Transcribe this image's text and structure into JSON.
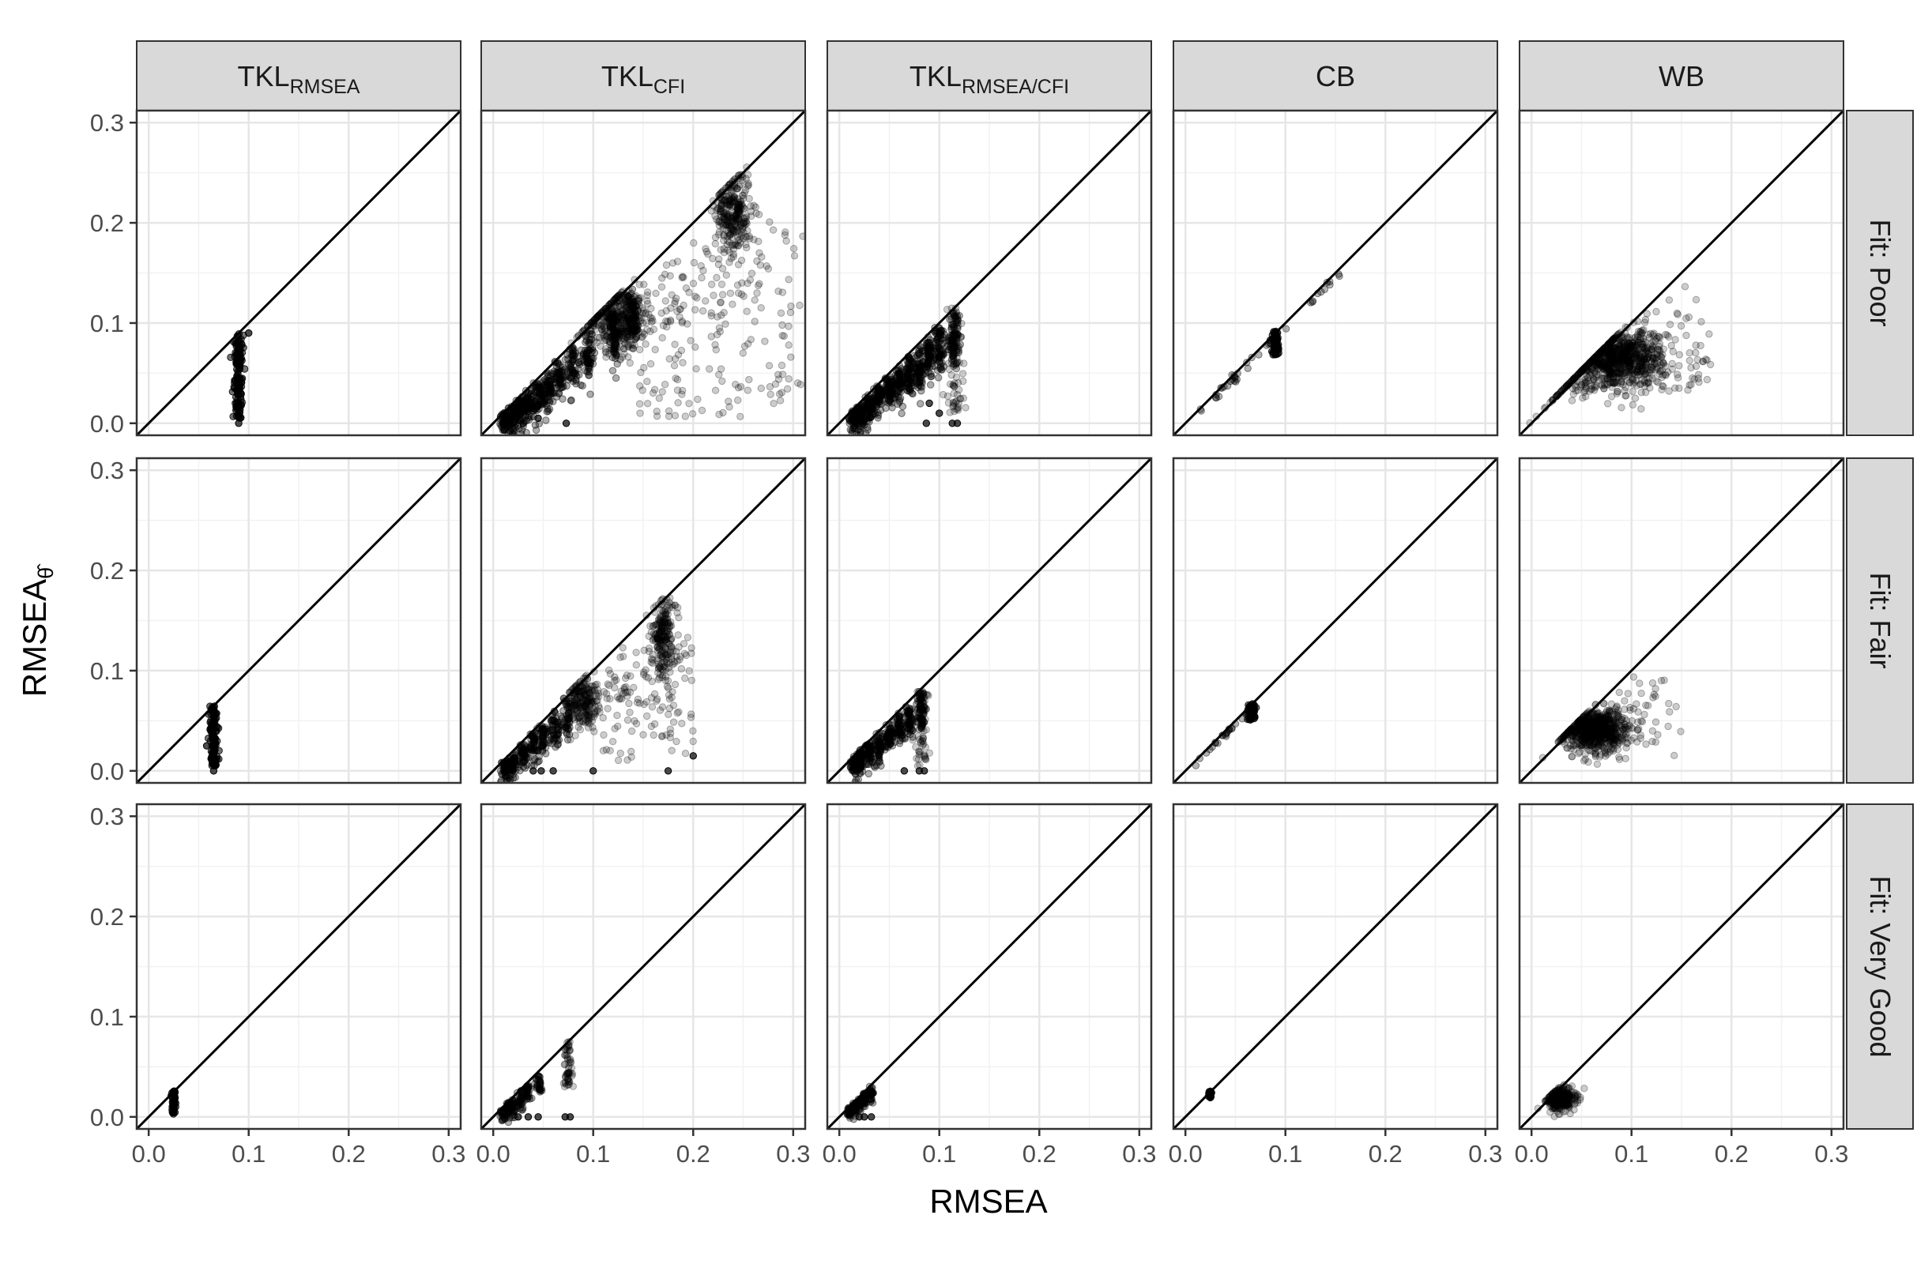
{
  "chart_data": {
    "type": "scatter",
    "facet_layout": "grid",
    "xlabel": "RMSEA",
    "ylabel": {
      "main": "RMSEA",
      "subscript": "θ̂"
    },
    "xlim": [
      -0.012,
      0.312
    ],
    "ylim": [
      -0.012,
      0.312
    ],
    "x_ticks": [
      0.0,
      0.1,
      0.2,
      0.3
    ],
    "y_ticks": [
      0.0,
      0.1,
      0.2,
      0.3
    ],
    "x_tick_labels": [
      "0.0",
      "0.1",
      "0.2",
      "0.3"
    ],
    "y_tick_labels": [
      "0.0",
      "0.1",
      "0.2",
      "0.3"
    ],
    "grid": true,
    "reference_line": "y = x",
    "point_color": "#000000",
    "point_alpha": 0.2,
    "columns": [
      {
        "main": "TKL",
        "sub": "RMSEA"
      },
      {
        "main": "TKL",
        "sub": "CFI"
      },
      {
        "main": "TKL",
        "sub": "RMSEA/CFI"
      },
      {
        "main": "CB",
        "sub": ""
      },
      {
        "main": "WB",
        "sub": ""
      }
    ],
    "rows": [
      {
        "label": "Fit: Poor",
        "true_rmsea": 0.09
      },
      {
        "label": "Fit: Fair",
        "true_rmsea": 0.065
      },
      {
        "label": "Fit: Very Good",
        "true_rmsea": 0.025
      }
    ],
    "panels": [
      {
        "row": 0,
        "col": 0,
        "clusters": [
          {
            "kind": "vertical",
            "x": 0.09,
            "y_range": [
              0.005,
              0.09
            ],
            "n": 140,
            "spread": 0.002,
            "dense": true
          },
          {
            "kind": "points",
            "points": [
              [
                0.09,
                0.0
              ],
              [
                0.1,
                0.09
              ]
            ]
          }
        ]
      },
      {
        "row": 0,
        "col": 1,
        "clusters": [
          {
            "kind": "staircase",
            "xs": [
              0.012,
              0.02,
              0.028,
              0.036,
              0.045,
              0.055,
              0.065,
              0.08,
              0.095,
              0.12,
              0.14
            ],
            "n_each": 60,
            "spread": 0.006
          },
          {
            "kind": "blob",
            "cx": 0.125,
            "cy": 0.105,
            "rx": 0.025,
            "ry": 0.028,
            "n": 420
          },
          {
            "kind": "blob",
            "cx": 0.24,
            "cy": 0.21,
            "rx": 0.015,
            "ry": 0.035,
            "n": 300
          },
          {
            "kind": "scatter",
            "x_range": [
              0.14,
              0.31
            ],
            "y_range": [
              0.005,
              0.21
            ],
            "n": 220,
            "below_diagonal": true
          },
          {
            "kind": "points",
            "points": [
              [
                0.01,
                0.0
              ],
              [
                0.02,
                0.0
              ],
              [
                0.03,
                0.0
              ],
              [
                0.073,
                0.0
              ],
              [
                0.045,
                0.005
              ]
            ]
          }
        ]
      },
      {
        "row": 0,
        "col": 2,
        "clusters": [
          {
            "kind": "staircase",
            "xs": [
              0.015,
              0.022,
              0.03,
              0.04,
              0.05,
              0.06,
              0.07,
              0.08,
              0.09,
              0.1,
              0.115
            ],
            "n_each": 70,
            "spread": 0.005
          },
          {
            "kind": "vertical",
            "x": 0.115,
            "y_range": [
              0.01,
              0.115
            ],
            "n": 90,
            "spread": 0.004,
            "dense": false
          },
          {
            "kind": "points",
            "points": [
              [
                0.087,
                0.0
              ],
              [
                0.113,
                0.0
              ],
              [
                0.118,
                0.0
              ],
              [
                0.1,
                0.01
              ],
              [
                0.09,
                0.02
              ]
            ]
          }
        ]
      },
      {
        "row": 0,
        "col": 3,
        "clusters": [
          {
            "kind": "vertical",
            "x": 0.09,
            "y_range": [
              0.068,
              0.092
            ],
            "n": 60,
            "spread": 0.002,
            "dense": true
          },
          {
            "kind": "line",
            "x_range": [
              0.01,
              0.155
            ],
            "n": 40,
            "offset": -0.004
          }
        ]
      },
      {
        "row": 0,
        "col": 4,
        "clusters": [
          {
            "kind": "blob",
            "cx": 0.085,
            "cy": 0.065,
            "rx": 0.04,
            "ry": 0.024,
            "n": 900,
            "below_diagonal": true
          },
          {
            "kind": "scatter",
            "x_range": [
              0.04,
              0.18
            ],
            "y_range": [
              0.03,
              0.14
            ],
            "n": 120,
            "below_diagonal": true
          }
        ]
      },
      {
        "row": 1,
        "col": 0,
        "clusters": [
          {
            "kind": "vertical",
            "x": 0.065,
            "y_range": [
              0.005,
              0.065
            ],
            "n": 120,
            "spread": 0.002,
            "dense": true
          },
          {
            "kind": "points",
            "points": [
              [
                0.065,
                0.0
              ],
              [
                0.058,
                0.025
              ]
            ]
          }
        ]
      },
      {
        "row": 1,
        "col": 1,
        "clusters": [
          {
            "kind": "staircase",
            "xs": [
              0.012,
              0.02,
              0.03,
              0.04,
              0.05,
              0.062,
              0.075
            ],
            "n_each": 50,
            "spread": 0.005
          },
          {
            "kind": "blob",
            "cx": 0.09,
            "cy": 0.07,
            "rx": 0.012,
            "ry": 0.022,
            "n": 200
          },
          {
            "kind": "blob",
            "cx": 0.17,
            "cy": 0.135,
            "rx": 0.01,
            "ry": 0.03,
            "n": 220
          },
          {
            "kind": "scatter",
            "x_range": [
              0.1,
              0.2
            ],
            "y_range": [
              0.01,
              0.14
            ],
            "n": 140,
            "below_diagonal": true
          },
          {
            "kind": "points",
            "points": [
              [
                0.04,
                0.0
              ],
              [
                0.048,
                0.0
              ],
              [
                0.06,
                0.0
              ],
              [
                0.1,
                0.0
              ],
              [
                0.175,
                0.0
              ],
              [
                0.2,
                0.015
              ]
            ]
          }
        ]
      },
      {
        "row": 1,
        "col": 2,
        "clusters": [
          {
            "kind": "staircase",
            "xs": [
              0.015,
              0.022,
              0.03,
              0.04,
              0.05,
              0.06,
              0.07,
              0.082
            ],
            "n_each": 55,
            "spread": 0.004
          },
          {
            "kind": "vertical",
            "x": 0.082,
            "y_range": [
              0.005,
              0.08
            ],
            "n": 70,
            "spread": 0.003,
            "dense": false
          },
          {
            "kind": "points",
            "points": [
              [
                0.065,
                0.0
              ],
              [
                0.08,
                0.0
              ],
              [
                0.085,
                0.0
              ]
            ]
          }
        ]
      },
      {
        "row": 1,
        "col": 3,
        "clusters": [
          {
            "kind": "vertical",
            "x": 0.066,
            "y_range": [
              0.05,
              0.067
            ],
            "n": 50,
            "spread": 0.002,
            "dense": true
          },
          {
            "kind": "line",
            "x_range": [
              0.01,
              0.065
            ],
            "n": 25,
            "offset": -0.003
          }
        ]
      },
      {
        "row": 1,
        "col": 4,
        "clusters": [
          {
            "kind": "blob",
            "cx": 0.065,
            "cy": 0.042,
            "rx": 0.027,
            "ry": 0.018,
            "n": 700,
            "below_diagonal": true
          },
          {
            "kind": "scatter",
            "x_range": [
              0.04,
              0.15
            ],
            "y_range": [
              0.01,
              0.1
            ],
            "n": 70,
            "below_diagonal": true
          }
        ]
      },
      {
        "row": 2,
        "col": 0,
        "clusters": [
          {
            "kind": "vertical",
            "x": 0.025,
            "y_range": [
              0.002,
              0.026
            ],
            "n": 40,
            "spread": 0.001,
            "dense": true
          }
        ]
      },
      {
        "row": 2,
        "col": 1,
        "clusters": [
          {
            "kind": "staircase",
            "xs": [
              0.01,
              0.015,
              0.02,
              0.028,
              0.035,
              0.045
            ],
            "n_each": 30,
            "spread": 0.003
          },
          {
            "kind": "vertical",
            "x": 0.075,
            "y_range": [
              0.03,
              0.075
            ],
            "n": 60,
            "spread": 0.002,
            "dense": false
          },
          {
            "kind": "points",
            "points": [
              [
                0.025,
                0.0
              ],
              [
                0.035,
                0.0
              ],
              [
                0.045,
                0.0
              ],
              [
                0.072,
                0.0
              ],
              [
                0.077,
                0.0
              ]
            ]
          }
        ]
      },
      {
        "row": 2,
        "col": 2,
        "clusters": [
          {
            "kind": "staircase",
            "xs": [
              0.01,
              0.015,
              0.02,
              0.025,
              0.032
            ],
            "n_each": 30,
            "spread": 0.002
          },
          {
            "kind": "points",
            "points": [
              [
                0.02,
                0.0
              ],
              [
                0.025,
                0.0
              ],
              [
                0.032,
                0.0
              ]
            ]
          }
        ]
      },
      {
        "row": 2,
        "col": 3,
        "clusters": [
          {
            "kind": "vertical",
            "x": 0.025,
            "y_range": [
              0.019,
              0.026
            ],
            "n": 15,
            "spread": 0.001,
            "dense": true
          }
        ]
      },
      {
        "row": 2,
        "col": 4,
        "clusters": [
          {
            "kind": "blob",
            "cx": 0.03,
            "cy": 0.018,
            "rx": 0.012,
            "ry": 0.009,
            "n": 300,
            "below_diagonal": true
          }
        ]
      }
    ]
  }
}
